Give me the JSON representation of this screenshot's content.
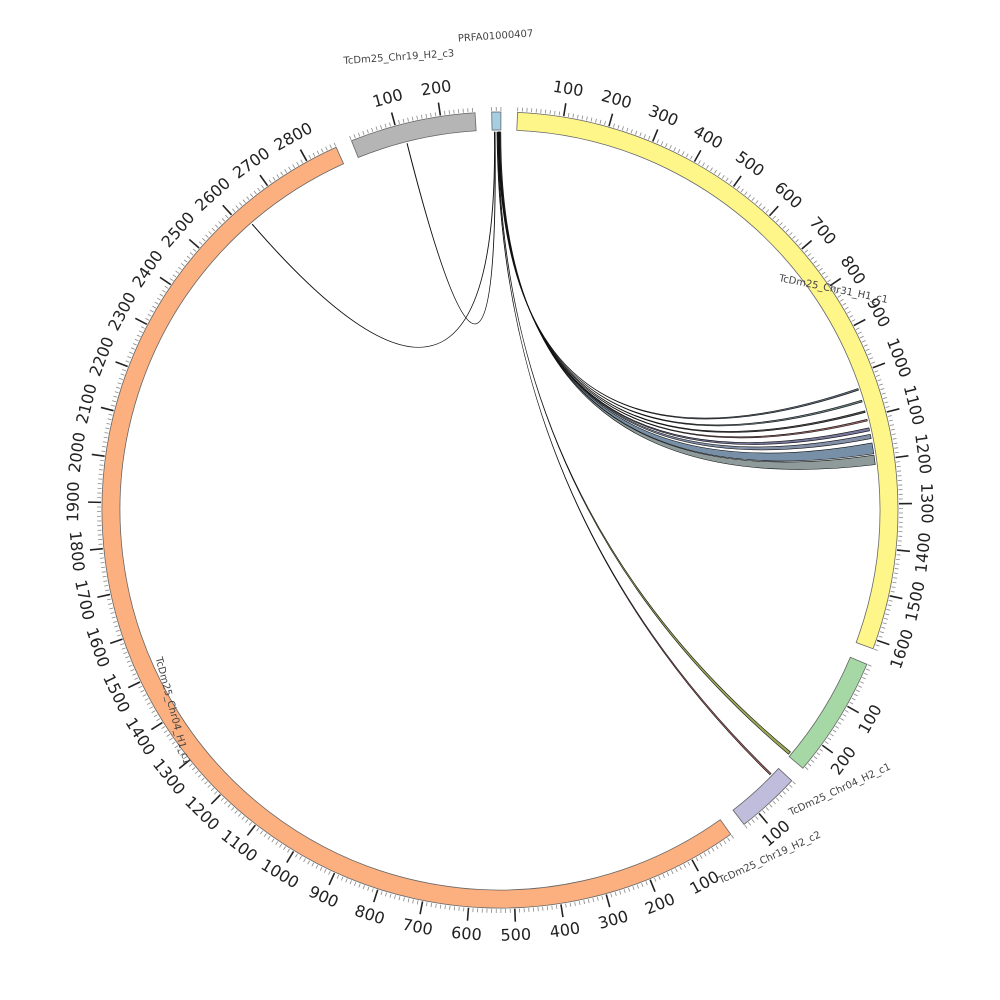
{
  "chart_data": {
    "type": "circos",
    "chromosomes": [
      {
        "name": "PRFA01000407",
        "length": 20,
        "color": "#a6cee3",
        "label": "PRFA01000407",
        "ticks": []
      },
      {
        "name": "TcDm25_Chr31_H1_c1",
        "length": 1620,
        "color": "#fff689",
        "label": "TcDm25_Chr31_H1_c1",
        "ticks": [
          100,
          200,
          300,
          400,
          500,
          600,
          700,
          800,
          900,
          1000,
          1100,
          1200,
          1300,
          1400,
          1500,
          1600
        ]
      },
      {
        "name": "TcDm25_Chr04_H2_c1",
        "length": 265,
        "color": "#a6d8a6",
        "label": "TcDm25_Chr04_H2_c1",
        "ticks": [
          100,
          200
        ]
      },
      {
        "name": "TcDm25_Chr19_H2_c2",
        "length": 140,
        "color": "#bfbcdc",
        "label": "TcDm25_Chr19_H2_c2",
        "ticks": [
          100
        ]
      },
      {
        "name": "TcDm25_Chr04_H1_c1",
        "length": 2870,
        "color": "#fdb07f",
        "label": "TcDm25_Chr04_H1_c1",
        "ticks": [
          100,
          200,
          300,
          400,
          500,
          600,
          700,
          800,
          900,
          1000,
          1100,
          1200,
          1300,
          1400,
          1500,
          1600,
          1700,
          1800,
          1900,
          2000,
          2100,
          2200,
          2300,
          2400,
          2500,
          2600,
          2700,
          2800
        ]
      },
      {
        "name": "TcDm25_Chr19_H2_c3",
        "length": 275,
        "color": "#b5b5b5",
        "label": "TcDm25_Chr19_H2_c3",
        "ticks": [
          100,
          200
        ]
      }
    ],
    "links": [
      {
        "from": "PRFA01000407",
        "from_start": 5,
        "from_end": 6,
        "to": "TcDm25_Chr04_H1_c1",
        "to_start": 2620,
        "to_end": 2621,
        "color": "#1a3a4a"
      },
      {
        "from": "PRFA01000407",
        "from_start": 6,
        "from_end": 7,
        "to": "TcDm25_Chr19_H2_c3",
        "to_start": 115,
        "to_end": 116,
        "color": "#7a7a20"
      },
      {
        "from": "PRFA01000407",
        "from_start": 11,
        "from_end": 12,
        "to": "TcDm25_Chr19_H2_c2",
        "to_start": 20,
        "to_end": 24,
        "color": "#8a3030"
      },
      {
        "from": "PRFA01000407",
        "from_start": 13,
        "from_end": 14,
        "to": "TcDm25_Chr04_H2_c1",
        "to_start": 255,
        "to_end": 262,
        "color": "#7a8a20"
      },
      {
        "from": "PRFA01000407",
        "from_start": 14,
        "from_end": 15,
        "to": "TcDm25_Chr31_H1_c1",
        "to_start": 1032,
        "to_end": 1036,
        "color": "#2a3a50"
      },
      {
        "from": "PRFA01000407",
        "from_start": 15,
        "from_end": 16,
        "to": "TcDm25_Chr31_H1_c1",
        "to_start": 1060,
        "to_end": 1064,
        "color": "#3a5a60"
      },
      {
        "from": "PRFA01000407",
        "from_start": 15,
        "from_end": 16,
        "to": "TcDm25_Chr31_H1_c1",
        "to_start": 1085,
        "to_end": 1089,
        "color": "#1a1a1a"
      },
      {
        "from": "PRFA01000407",
        "from_start": 16,
        "from_end": 17,
        "to": "TcDm25_Chr31_H1_c1",
        "to_start": 1105,
        "to_end": 1109,
        "color": "#7a3030"
      },
      {
        "from": "PRFA01000407",
        "from_start": 16,
        "from_end": 17,
        "to": "TcDm25_Chr31_H1_c1",
        "to_start": 1125,
        "to_end": 1132,
        "color": "#4a4a7a"
      },
      {
        "from": "PRFA01000407",
        "from_start": 17,
        "from_end": 18,
        "to": "TcDm25_Chr31_H1_c1",
        "to_start": 1140,
        "to_end": 1150,
        "color": "#5a6a8a"
      },
      {
        "from": "PRFA01000407",
        "from_start": 17,
        "from_end": 19,
        "to": "TcDm25_Chr31_H1_c1",
        "to_start": 1160,
        "to_end": 1185,
        "color": "#4a6a8a"
      },
      {
        "from": "PRFA01000407",
        "from_start": 18,
        "from_end": 20,
        "to": "TcDm25_Chr31_H1_c1",
        "to_start": 1188,
        "to_end": 1210,
        "color": "#6a7a7a"
      }
    ]
  }
}
